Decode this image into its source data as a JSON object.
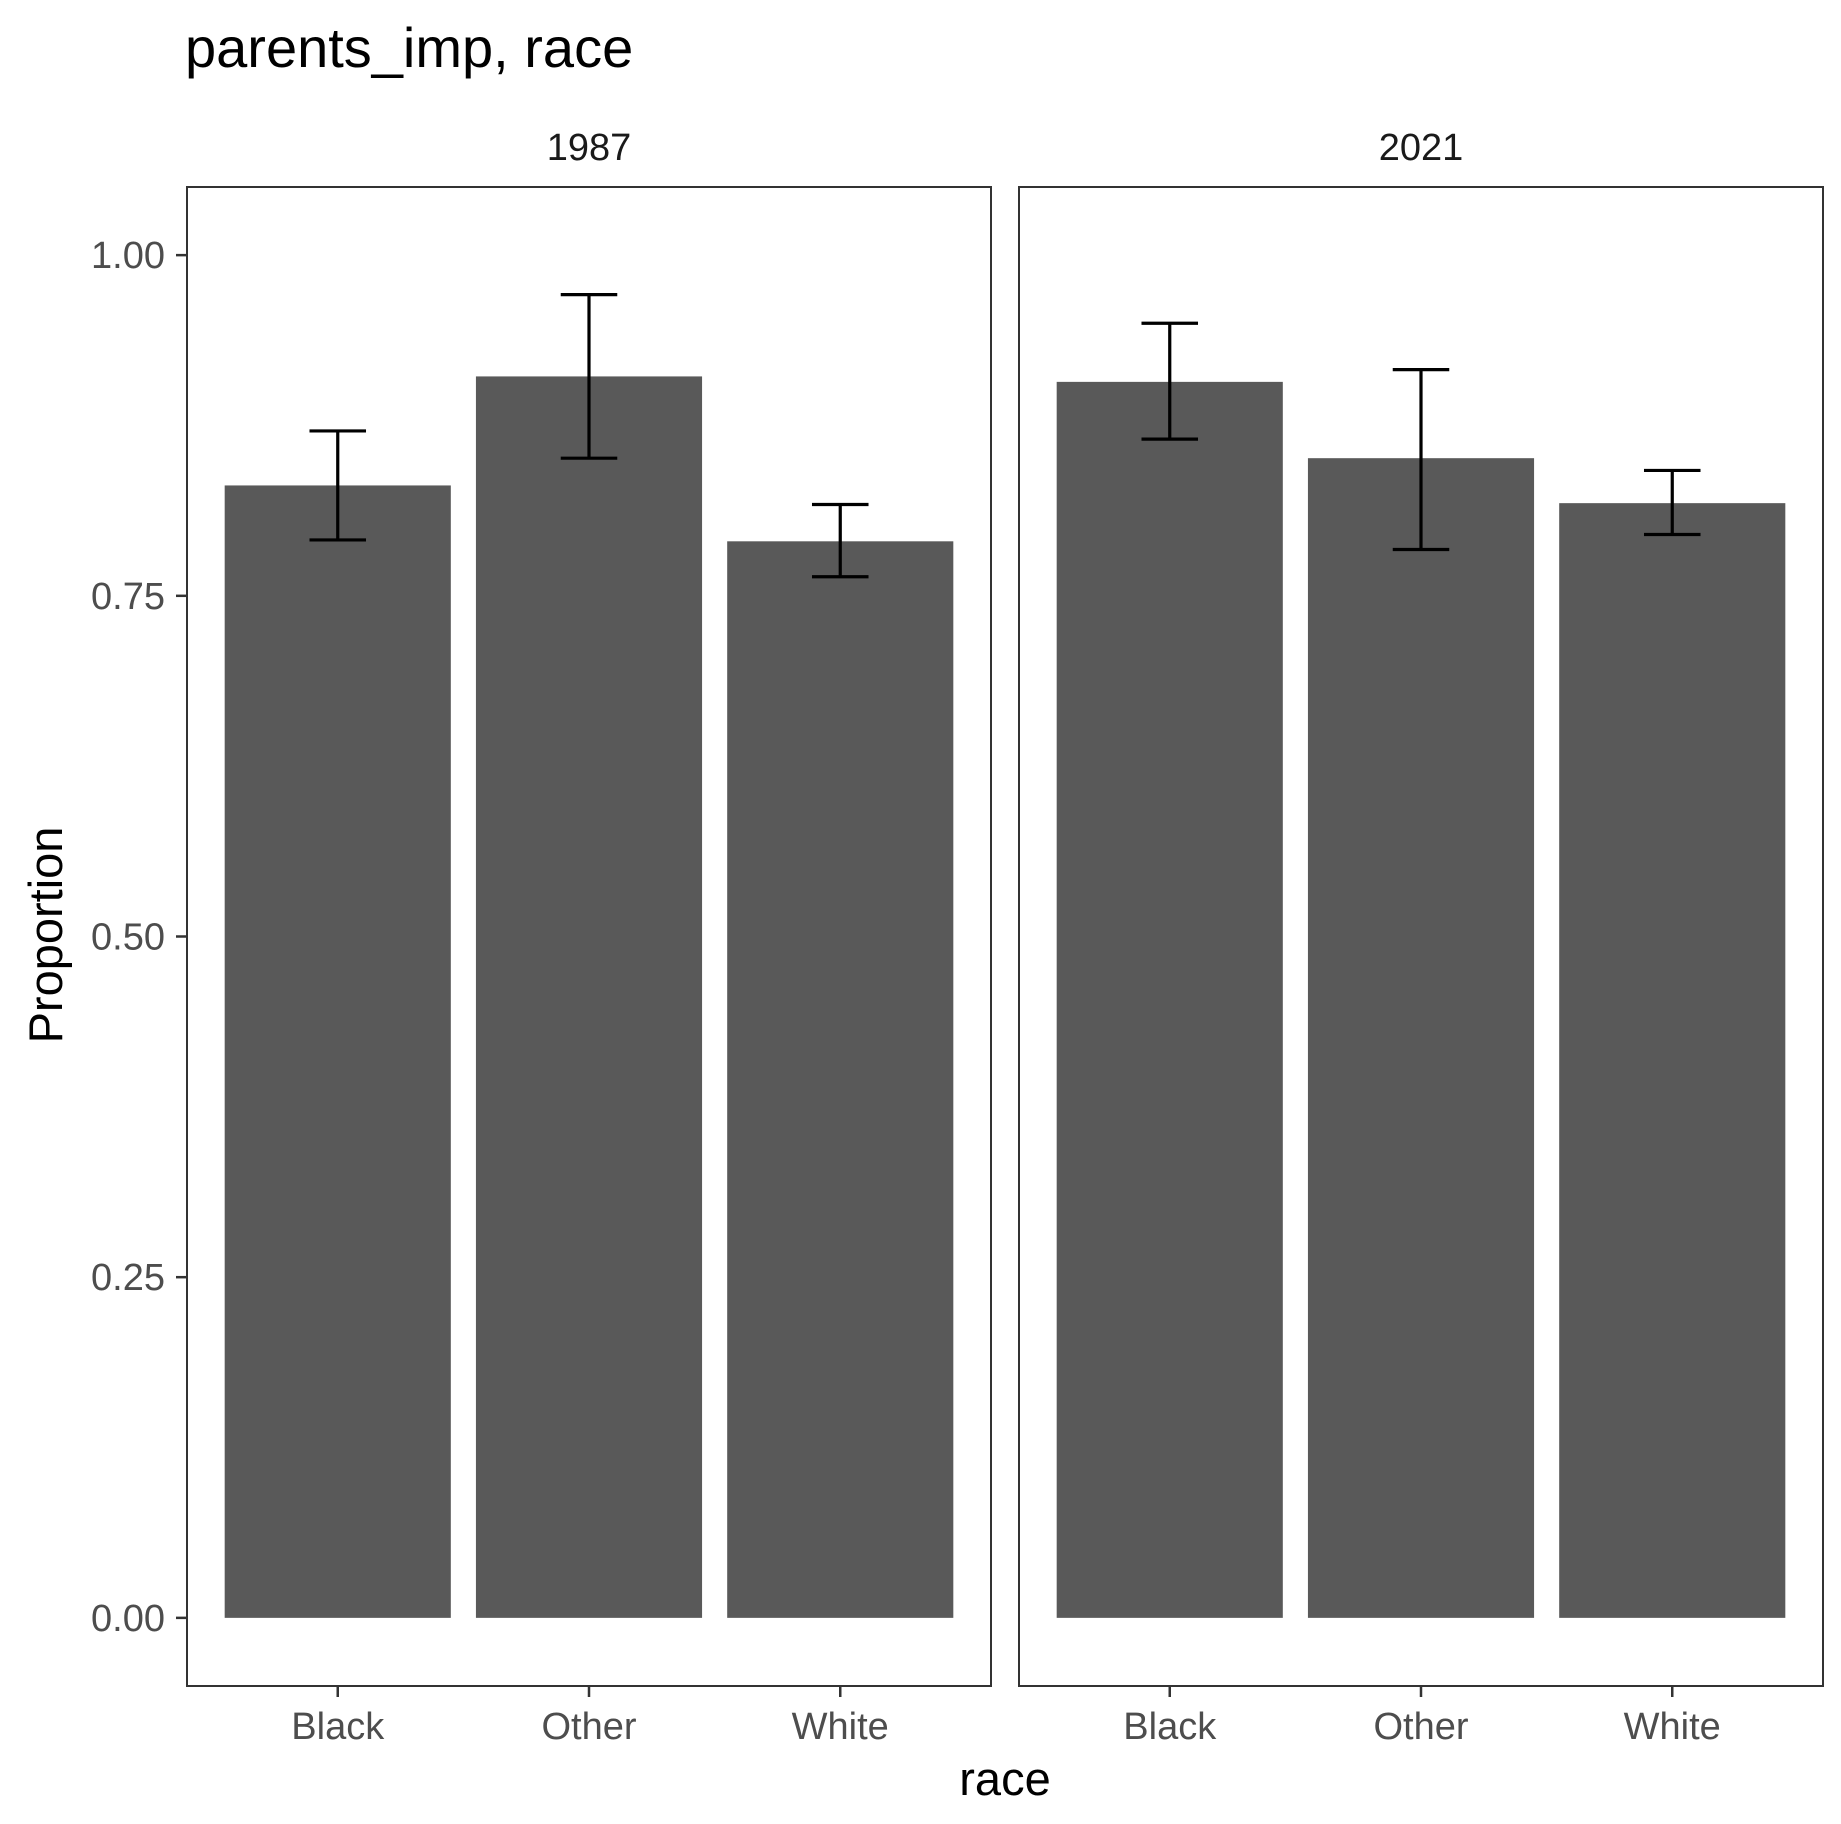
{
  "chart_data": {
    "type": "bar",
    "title": "parents_imp, race",
    "xlabel": "race",
    "ylabel": "Proportion",
    "ylim": [
      -0.05,
      1.05
    ],
    "yticks": [
      0,
      0.25,
      0.5,
      0.75,
      1
    ],
    "ytick_labels": [
      "0.00",
      "0.25",
      "0.50",
      "0.75",
      "1.00"
    ],
    "grid": false,
    "legend": "none",
    "colors": {
      "bar": "#595959",
      "errorbar": "#000000",
      "panel_border": "#333333",
      "tick": "#333333"
    },
    "categories": [
      "Black",
      "Other",
      "White"
    ],
    "facets": [
      {
        "label": "1987",
        "values": [
          0.831,
          0.911,
          0.79
        ],
        "error_low": [
          0.791,
          0.851,
          0.764
        ],
        "error_high": [
          0.871,
          0.971,
          0.817
        ]
      },
      {
        "label": "2021",
        "values": [
          0.907,
          0.851,
          0.818
        ],
        "error_low": [
          0.865,
          0.784,
          0.795
        ],
        "error_high": [
          0.95,
          0.916,
          0.842
        ]
      }
    ]
  }
}
